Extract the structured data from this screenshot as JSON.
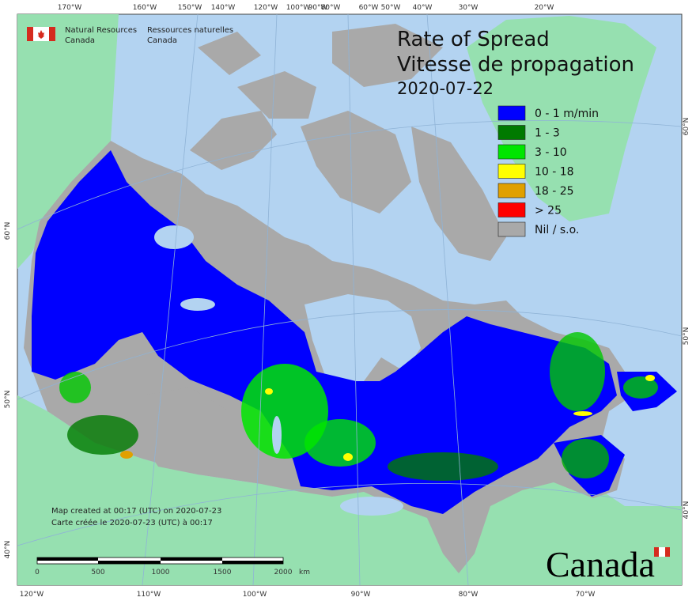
{
  "header": {
    "department_en": [
      "Natural Resources",
      "Canada"
    ],
    "department_fr": [
      "Ressources naturelles",
      "Canada"
    ]
  },
  "title": {
    "lines": [
      "Rate of Spread",
      "Vitesse de propagation"
    ],
    "date": "2020-07-22"
  },
  "legend": {
    "items": [
      {
        "label": "0 - 1 m/min",
        "color": "#0000ff"
      },
      {
        "label": "1 - 3",
        "color": "#007a00"
      },
      {
        "label": "3 - 10",
        "color": "#00e600"
      },
      {
        "label": "10 - 18",
        "color": "#ffff00"
      },
      {
        "label": "18 - 25",
        "color": "#e0a000"
      },
      {
        "label": "> 25",
        "color": "#ff0000"
      },
      {
        "label": "Nil / s.o.",
        "color": "#a9a9a9"
      }
    ]
  },
  "graticule": {
    "top": [
      "170°W",
      "160°W",
      "150°W",
      "140°W",
      "120°W",
      "100°W",
      "90°W",
      "80°W",
      "60°W",
      "50°W",
      "40°W",
      "30°W",
      "20°W"
    ],
    "bottom": [
      "120°W",
      "110°W",
      "100°W",
      "90°W",
      "80°W",
      "70°W"
    ],
    "left": [
      "60°N",
      "50°N",
      "40°N"
    ],
    "right": [
      "60°N",
      "50°N",
      "40°N"
    ]
  },
  "scale_bar": {
    "labels": [
      "0",
      "500",
      "1000",
      "1500",
      "2000"
    ],
    "unit": "km"
  },
  "footer": {
    "created_en": "Map created at 00:17 (UTC) on 2020-07-23",
    "created_fr": "Carte créée le 2020-07-23 (UTC) à 00:17"
  },
  "wordmark": "Canada"
}
